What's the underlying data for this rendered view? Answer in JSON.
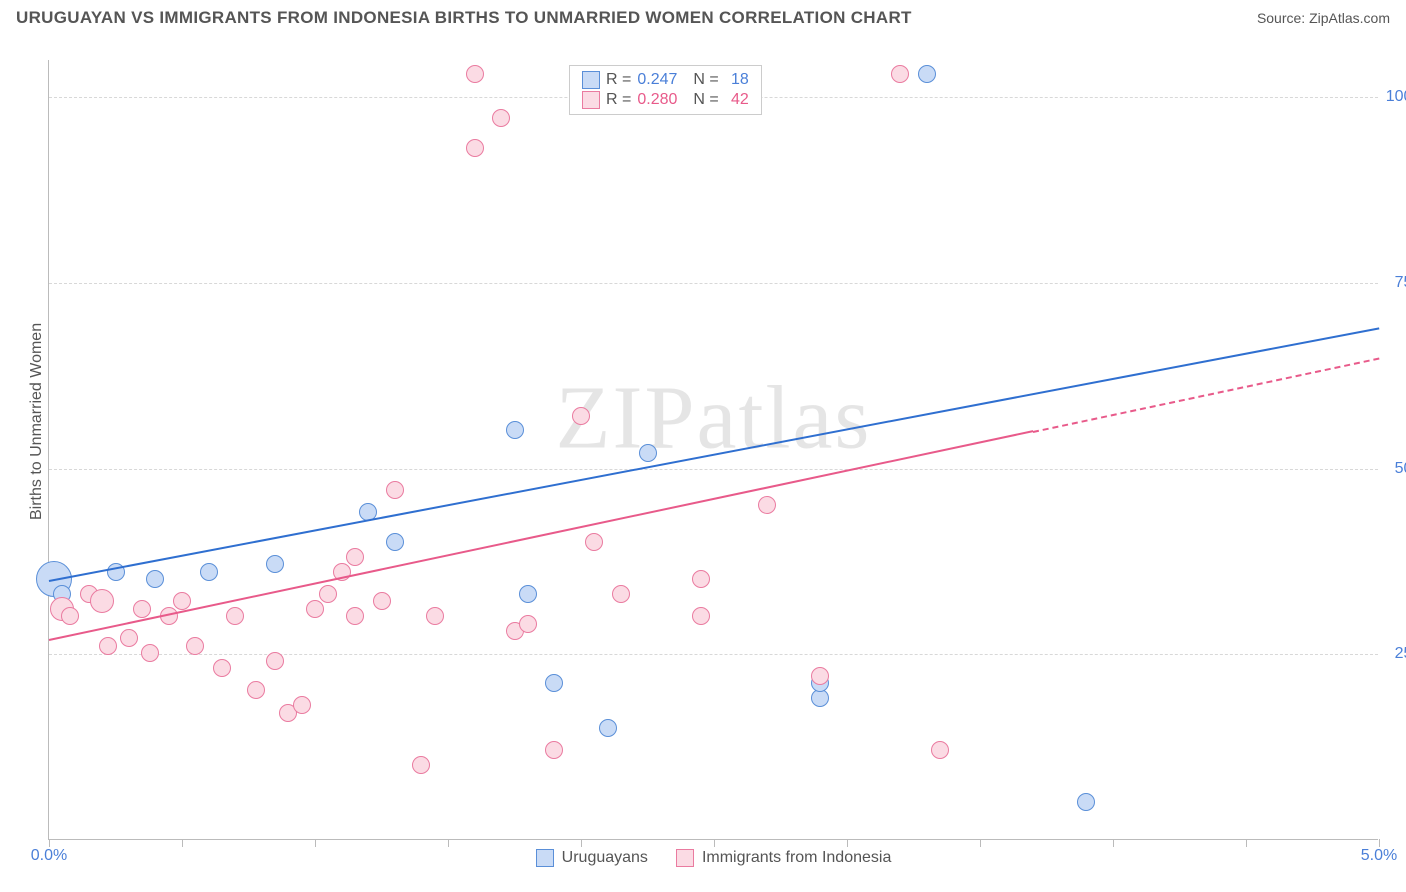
{
  "header": {
    "title": "URUGUAYAN VS IMMIGRANTS FROM INDONESIA BIRTHS TO UNMARRIED WOMEN CORRELATION CHART",
    "source_label": "Source: ",
    "source_name": "ZipAtlas.com"
  },
  "watermark": "ZIPatlas",
  "chart": {
    "type": "scatter",
    "ylabel": "Births to Unmarried Women",
    "xlim": [
      0.0,
      5.0
    ],
    "ylim": [
      0.0,
      105.0
    ],
    "x_ticks": [
      0.0,
      0.5,
      1.0,
      1.5,
      2.0,
      2.5,
      3.0,
      3.5,
      4.0,
      4.5,
      5.0
    ],
    "x_tick_labels": {
      "0": "0.0%",
      "10": "5.0%"
    },
    "y_gridlines": [
      25.0,
      50.0,
      75.0,
      100.0
    ],
    "y_tick_labels": [
      "25.0%",
      "50.0%",
      "75.0%",
      "100.0%"
    ],
    "background_color": "#ffffff",
    "grid_color": "#d8d8d8",
    "axis_color": "#bbbbbb",
    "label_fontsize": 16,
    "tick_color": "#4a7fd8",
    "series": [
      {
        "name": "Uruguayans",
        "color_fill": "#c9dbf6",
        "color_stroke": "#5a8fd8",
        "marker_radius": 9,
        "trend": {
          "x1": 0.0,
          "y1": 35.0,
          "x2": 5.0,
          "y2": 69.0,
          "color": "#2f6fd0",
          "width": 2.2,
          "dashed_from_x": null
        },
        "R": "0.247",
        "N": "18",
        "points": [
          {
            "x": 0.02,
            "y": 35,
            "r": 18
          },
          {
            "x": 0.25,
            "y": 36,
            "r": 9
          },
          {
            "x": 0.4,
            "y": 35,
            "r": 9
          },
          {
            "x": 0.6,
            "y": 36,
            "r": 9
          },
          {
            "x": 0.85,
            "y": 37,
            "r": 9
          },
          {
            "x": 1.2,
            "y": 44,
            "r": 9
          },
          {
            "x": 1.3,
            "y": 40,
            "r": 9
          },
          {
            "x": 1.75,
            "y": 55,
            "r": 9
          },
          {
            "x": 1.8,
            "y": 33,
            "r": 9
          },
          {
            "x": 1.9,
            "y": 21,
            "r": 9
          },
          {
            "x": 2.1,
            "y": 15,
            "r": 9
          },
          {
            "x": 2.25,
            "y": 52,
            "r": 9
          },
          {
            "x": 2.9,
            "y": 19,
            "r": 9
          },
          {
            "x": 2.9,
            "y": 21,
            "r": 9
          },
          {
            "x": 3.3,
            "y": 103,
            "r": 9
          },
          {
            "x": 3.9,
            "y": 5,
            "r": 9
          },
          {
            "x": 2.45,
            "y": 103,
            "r": 9
          },
          {
            "x": 0.05,
            "y": 33,
            "r": 9
          }
        ]
      },
      {
        "name": "Immigrants from Indonesia",
        "color_fill": "#fbdbe4",
        "color_stroke": "#ea7ba0",
        "marker_radius": 9,
        "trend": {
          "x1": 0.0,
          "y1": 27.0,
          "x2": 5.0,
          "y2": 65.0,
          "color": "#e85a8a",
          "width": 2.2,
          "dashed_from_x": 3.7
        },
        "R": "0.280",
        "N": "42",
        "points": [
          {
            "x": 0.05,
            "y": 31,
            "r": 12
          },
          {
            "x": 0.08,
            "y": 30,
            "r": 9
          },
          {
            "x": 0.15,
            "y": 33,
            "r": 9
          },
          {
            "x": 0.2,
            "y": 32,
            "r": 12
          },
          {
            "x": 0.22,
            "y": 26,
            "r": 9
          },
          {
            "x": 0.3,
            "y": 27,
            "r": 9
          },
          {
            "x": 0.35,
            "y": 31,
            "r": 9
          },
          {
            "x": 0.38,
            "y": 25,
            "r": 9
          },
          {
            "x": 0.45,
            "y": 30,
            "r": 9
          },
          {
            "x": 0.5,
            "y": 32,
            "r": 9
          },
          {
            "x": 0.55,
            "y": 26,
            "r": 9
          },
          {
            "x": 0.65,
            "y": 23,
            "r": 9
          },
          {
            "x": 0.7,
            "y": 30,
            "r": 9
          },
          {
            "x": 0.78,
            "y": 20,
            "r": 9
          },
          {
            "x": 0.85,
            "y": 24,
            "r": 9
          },
          {
            "x": 0.9,
            "y": 17,
            "r": 9
          },
          {
            "x": 0.95,
            "y": 18,
            "r": 9
          },
          {
            "x": 1.0,
            "y": 31,
            "r": 9
          },
          {
            "x": 1.05,
            "y": 33,
            "r": 9
          },
          {
            "x": 1.1,
            "y": 36,
            "r": 9
          },
          {
            "x": 1.15,
            "y": 38,
            "r": 9
          },
          {
            "x": 1.15,
            "y": 30,
            "r": 9
          },
          {
            "x": 1.25,
            "y": 32,
            "r": 9
          },
          {
            "x": 1.3,
            "y": 47,
            "r": 9
          },
          {
            "x": 1.4,
            "y": 10,
            "r": 9
          },
          {
            "x": 1.45,
            "y": 30,
            "r": 9
          },
          {
            "x": 1.6,
            "y": 103,
            "r": 9
          },
          {
            "x": 1.6,
            "y": 93,
            "r": 9
          },
          {
            "x": 1.7,
            "y": 97,
            "r": 9
          },
          {
            "x": 1.75,
            "y": 28,
            "r": 9
          },
          {
            "x": 1.8,
            "y": 29,
            "r": 9
          },
          {
            "x": 1.9,
            "y": 12,
            "r": 9
          },
          {
            "x": 2.0,
            "y": 57,
            "r": 9
          },
          {
            "x": 2.05,
            "y": 40,
            "r": 9
          },
          {
            "x": 2.15,
            "y": 33,
            "r": 9
          },
          {
            "x": 2.45,
            "y": 30,
            "r": 9
          },
          {
            "x": 2.45,
            "y": 35,
            "r": 9
          },
          {
            "x": 2.7,
            "y": 45,
            "r": 9
          },
          {
            "x": 2.9,
            "y": 22,
            "r": 9
          },
          {
            "x": 3.2,
            "y": 103,
            "r": 9
          },
          {
            "x": 3.35,
            "y": 12,
            "r": 9
          },
          {
            "x": 2.3,
            "y": 103,
            "r": 9
          }
        ]
      }
    ],
    "legend_top": {
      "rows": [
        {
          "swatch_fill": "#c9dbf6",
          "swatch_stroke": "#5a8fd8",
          "r_label": "R =",
          "r_val": "0.247",
          "n_label": "N =",
          "n_val": "18",
          "val_class": "val-b"
        },
        {
          "swatch_fill": "#fbdbe4",
          "swatch_stroke": "#ea7ba0",
          "r_label": "R =",
          "r_val": "0.280",
          "n_label": "N =",
          "n_val": "42",
          "val_class": "val-p"
        }
      ]
    },
    "legend_bottom": [
      {
        "swatch_fill": "#c9dbf6",
        "swatch_stroke": "#5a8fd8",
        "label": "Uruguayans"
      },
      {
        "swatch_fill": "#fbdbe4",
        "swatch_stroke": "#ea7ba0",
        "label": "Immigrants from Indonesia"
      }
    ]
  }
}
